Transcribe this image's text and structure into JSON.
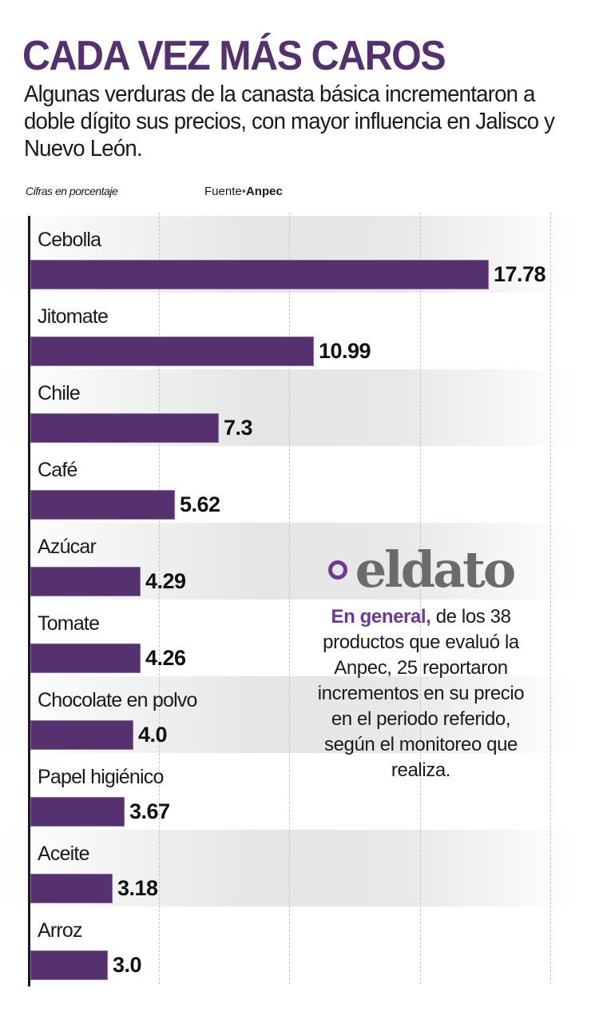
{
  "header": {
    "title": "CADA VEZ MÁS CAROS",
    "subtitle": "Algunas verduras de la canasta básica incrementaron a doble dígito sus precios, con mayor influencia en Jalisco y Nuevo León.",
    "note": "Cifras en porcentaje",
    "source_label": "Fuente",
    "source_bullet": "•",
    "source_name": "Anpec"
  },
  "colors": {
    "bar": "#55316f",
    "accent": "#6b3b93",
    "band": "#e4e5e5"
  },
  "chart_data": {
    "type": "bar",
    "orientation": "horizontal",
    "title": "CADA VEZ MÁS CAROS",
    "subtitle": "Algunas verduras de la canasta básica incrementaron a doble dígito sus precios, con mayor influencia en Jalisco y Nuevo León.",
    "xlabel": "Cifras en porcentaje",
    "ylabel": "",
    "source": "Anpec",
    "categories": [
      "Cebolla",
      "Jitomate",
      "Chile",
      "Café",
      "Azúcar",
      "Tomate",
      "Chocolate en polvo",
      "Papel higiénico",
      "Aceite",
      "Arroz"
    ],
    "values": [
      17.78,
      10.99,
      7.3,
      5.62,
      4.29,
      4.26,
      4.0,
      3.67,
      3.18,
      3.0
    ],
    "value_labels": [
      "17.78",
      "10.99",
      "7.3",
      "5.62",
      "4.29",
      "4.26",
      "4.0",
      "3.67",
      "3.18",
      "3.0"
    ],
    "grid": true,
    "xlim": [
      0,
      20
    ]
  },
  "callout": {
    "heading": "eldato",
    "highlight": "En general,",
    "body": " de los 38 productos que evaluó la Anpec, 25 reportaron incrementos en su precio en el periodo referido, según el monitoreo que realiza."
  }
}
